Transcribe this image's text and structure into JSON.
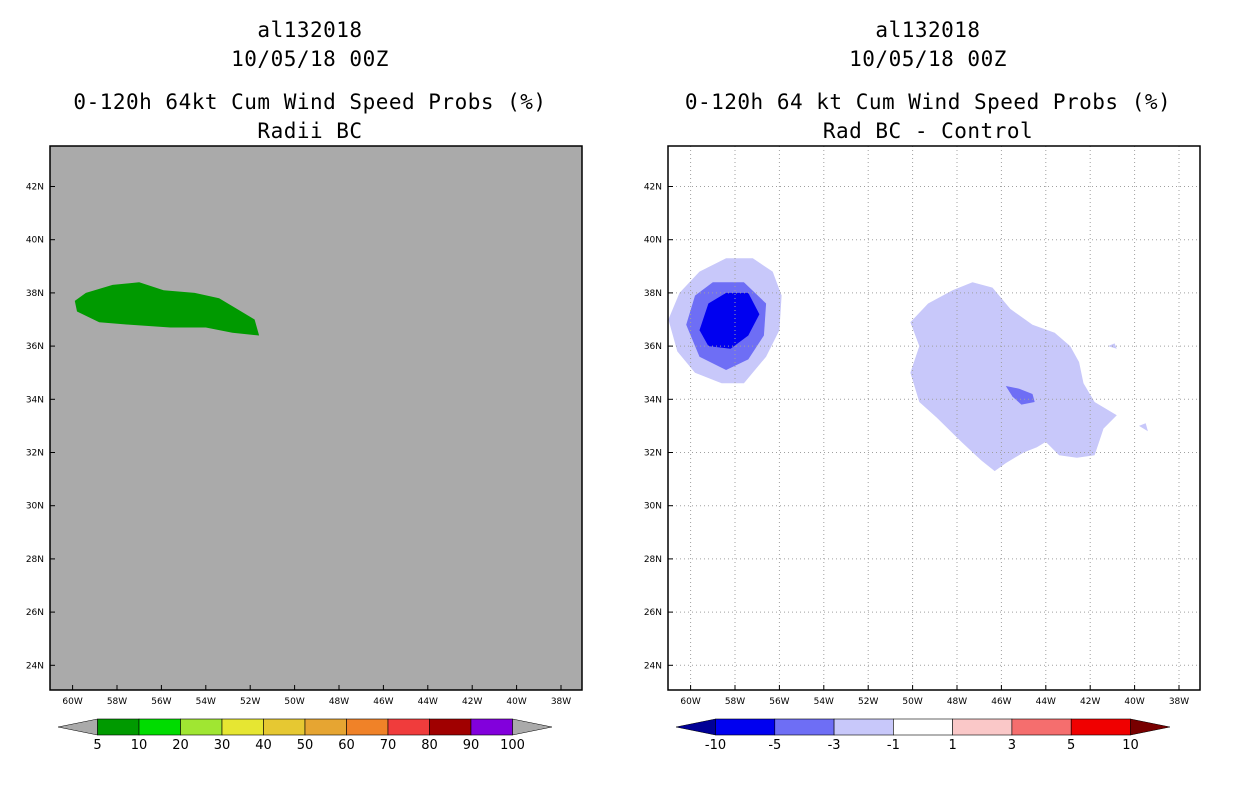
{
  "panels": [
    {
      "id": "radii-bc",
      "title_lines": [
        "al132018",
        "10/05/18 00Z",
        "0-120h 64kt Cum Wind Speed Probs (%)",
        "Radii BC"
      ],
      "background": "#aaaaaa",
      "show_grid": false,
      "features": [
        {
          "name": "prob-5-10-green",
          "color": "#009a00",
          "polygon": [
            [
              -59.9,
              37.7
            ],
            [
              -59.4,
              38.0
            ],
            [
              -58.2,
              38.3
            ],
            [
              -57.0,
              38.4
            ],
            [
              -55.9,
              38.1
            ],
            [
              -54.5,
              38.0
            ],
            [
              -53.4,
              37.8
            ],
            [
              -52.6,
              37.4
            ],
            [
              -51.8,
              37.0
            ],
            [
              -51.6,
              36.4
            ],
            [
              -52.8,
              36.5
            ],
            [
              -54.0,
              36.7
            ],
            [
              -55.6,
              36.7
            ],
            [
              -57.4,
              36.8
            ],
            [
              -58.8,
              36.9
            ],
            [
              -59.8,
              37.3
            ]
          ]
        }
      ],
      "x_labels": [
        "60W",
        "58W",
        "56W",
        "54W",
        "52W",
        "50W",
        "48W",
        "46W",
        "44W",
        "42W",
        "40W",
        "38W"
      ],
      "y_labels": [
        "24N",
        "26N",
        "28N",
        "30N",
        "32N",
        "34N",
        "36N",
        "38N",
        "40N",
        "42N"
      ],
      "colorbar": {
        "colors": [
          "#009a00",
          "#00dc00",
          "#a0e632",
          "#e6e632",
          "#e6c832",
          "#e6a532",
          "#f08228",
          "#f03c3c",
          "#a00000",
          "#8200dc"
        ],
        "end_colors": [
          "#aaaaaa",
          "#aaaaaa"
        ],
        "labels": [
          "5",
          "10",
          "20",
          "30",
          "40",
          "50",
          "60",
          "70",
          "80",
          "90",
          "100"
        ]
      }
    },
    {
      "id": "rad-bc-minus-control",
      "title_lines": [
        "al132018",
        "10/05/18 00Z",
        "0-120h 64 kt Cum Wind Speed Probs (%)",
        "Rad BC - Control"
      ],
      "background": "#ffffff",
      "show_grid": true,
      "features": [
        {
          "name": "diff-minus1-minus3-light-blue",
          "color": "#c8c8fa",
          "polygon": [
            [
              -61.0,
              37.0
            ],
            [
              -60.5,
              38.0
            ],
            [
              -59.6,
              38.8
            ],
            [
              -58.4,
              39.3
            ],
            [
              -57.2,
              39.3
            ],
            [
              -56.3,
              38.8
            ],
            [
              -55.9,
              37.9
            ],
            [
              -56.0,
              36.6
            ],
            [
              -56.6,
              35.6
            ],
            [
              -57.6,
              34.6
            ],
            [
              -58.6,
              34.6
            ],
            [
              -59.8,
              35.0
            ],
            [
              -60.6,
              35.8
            ]
          ]
        },
        {
          "name": "diff-minus3-minus5-mid-blue",
          "color": "#6e6ef5",
          "polygon": [
            [
              -60.2,
              36.8
            ],
            [
              -59.8,
              37.9
            ],
            [
              -59.0,
              38.4
            ],
            [
              -57.6,
              38.4
            ],
            [
              -56.6,
              37.6
            ],
            [
              -56.7,
              36.4
            ],
            [
              -57.4,
              35.5
            ],
            [
              -58.4,
              35.1
            ],
            [
              -59.6,
              35.6
            ]
          ]
        },
        {
          "name": "diff-minus5-minus10-dark-blue",
          "color": "#0000f0",
          "polygon": [
            [
              -59.6,
              36.6
            ],
            [
              -59.2,
              37.6
            ],
            [
              -58.4,
              38.0
            ],
            [
              -57.4,
              38.0
            ],
            [
              -56.9,
              37.2
            ],
            [
              -57.4,
              36.4
            ],
            [
              -58.2,
              35.9
            ],
            [
              -59.2,
              36.0
            ]
          ]
        },
        {
          "name": "diff-minus1-minus3-large-area",
          "color": "#c8c8fa",
          "polygon": [
            [
              -50.1,
              35.0
            ],
            [
              -49.7,
              36.0
            ],
            [
              -50.1,
              36.9
            ],
            [
              -49.3,
              37.6
            ],
            [
              -48.2,
              38.1
            ],
            [
              -47.3,
              38.4
            ],
            [
              -46.4,
              38.2
            ],
            [
              -45.6,
              37.4
            ],
            [
              -44.6,
              36.8
            ],
            [
              -43.6,
              36.5
            ],
            [
              -42.9,
              36.0
            ],
            [
              -42.5,
              35.4
            ],
            [
              -42.3,
              34.6
            ],
            [
              -41.8,
              33.9
            ],
            [
              -40.8,
              33.4
            ],
            [
              -41.4,
              32.9
            ],
            [
              -41.6,
              32.4
            ],
            [
              -41.8,
              31.9
            ],
            [
              -42.6,
              31.8
            ],
            [
              -43.4,
              31.9
            ],
            [
              -44.0,
              32.4
            ],
            [
              -44.4,
              32.2
            ],
            [
              -45.0,
              32.0
            ],
            [
              -45.8,
              31.6
            ],
            [
              -46.3,
              31.3
            ],
            [
              -46.9,
              31.7
            ],
            [
              -47.8,
              32.4
            ],
            [
              -48.9,
              33.3
            ],
            [
              -49.7,
              33.9
            ]
          ]
        },
        {
          "name": "diff-small-dark-patch",
          "color": "#6e6ef5",
          "polygon": [
            [
              -45.8,
              34.5
            ],
            [
              -45.2,
              34.4
            ],
            [
              -44.6,
              34.2
            ],
            [
              -44.5,
              33.9
            ],
            [
              -45.1,
              33.8
            ],
            [
              -45.5,
              34.1
            ]
          ]
        },
        {
          "name": "diff-speck-1",
          "color": "#c8c8fa",
          "polygon": [
            [
              -41.2,
              36.0
            ],
            [
              -40.9,
              36.1
            ],
            [
              -40.8,
              35.9
            ]
          ]
        },
        {
          "name": "diff-speck-2",
          "color": "#c8c8fa",
          "polygon": [
            [
              -39.8,
              33.0
            ],
            [
              -39.5,
              33.1
            ],
            [
              -39.4,
              32.8
            ]
          ]
        }
      ],
      "x_labels": [
        "60W",
        "58W",
        "56W",
        "54W",
        "52W",
        "50W",
        "48W",
        "46W",
        "44W",
        "42W",
        "40W",
        "38W"
      ],
      "y_labels": [
        "24N",
        "26N",
        "28N",
        "30N",
        "32N",
        "34N",
        "36N",
        "38N",
        "40N",
        "42N"
      ],
      "colorbar": {
        "colors": [
          "#0000f0",
          "#6e6ef5",
          "#c8c8fa",
          "#ffffff",
          "#fac8c8",
          "#f56e6e",
          "#f00000"
        ],
        "end_colors": [
          "#000096",
          "#780000"
        ],
        "labels": [
          "-10",
          "-5",
          "-3",
          "-1",
          "1",
          "3",
          "5",
          "10"
        ]
      }
    }
  ]
}
